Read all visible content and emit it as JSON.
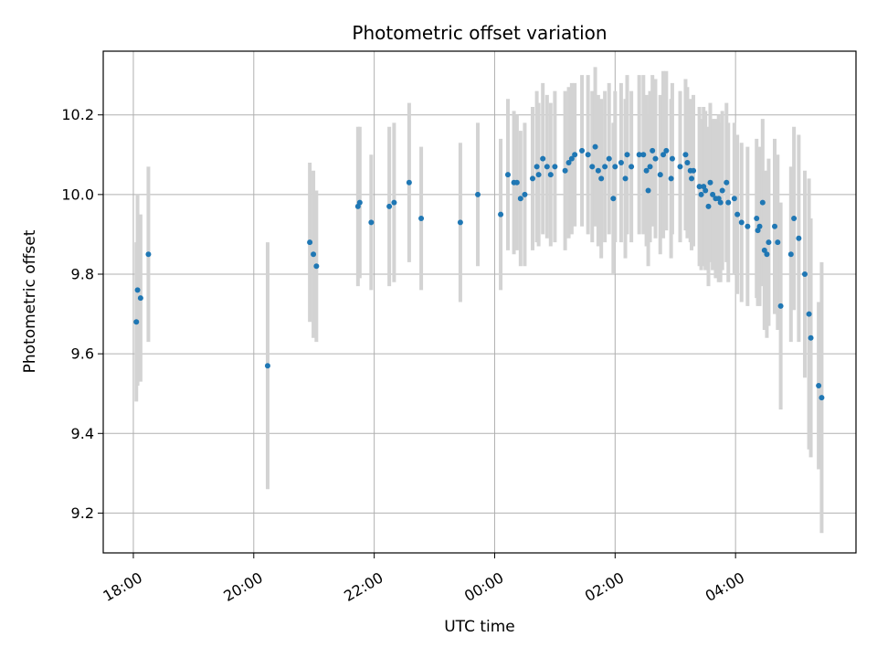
{
  "chart_data": {
    "type": "scatter",
    "title": "Photometric offset variation",
    "xlabel": "UTC time",
    "ylabel": "Photometric offset",
    "x_unit": "hours (UTC, continuing past midnight)",
    "xlim": [
      17.5,
      30.0
    ],
    "ylim": [
      9.1,
      10.36
    ],
    "x_ticks": [
      {
        "value": 18,
        "label": "18:00"
      },
      {
        "value": 20,
        "label": "20:00"
      },
      {
        "value": 22,
        "label": "22:00"
      },
      {
        "value": 24,
        "label": "00:00"
      },
      {
        "value": 26,
        "label": "02:00"
      },
      {
        "value": 28,
        "label": "04:00"
      }
    ],
    "y_ticks": [
      {
        "value": 9.2,
        "label": "9.2"
      },
      {
        "value": 9.4,
        "label": "9.4"
      },
      {
        "value": 9.6,
        "label": "9.6"
      },
      {
        "value": 9.8,
        "label": "9.8"
      },
      {
        "value": 10.0,
        "label": "10.0"
      },
      {
        "value": 10.2,
        "label": "10.2"
      }
    ],
    "grid": true,
    "colors": {
      "marker": "#1f77b4",
      "errorbar": "#d3d3d3",
      "grid": "#b0b0b0"
    },
    "points": [
      [
        18.05,
        9.68,
        0.2
      ],
      [
        18.07,
        9.76,
        0.24
      ],
      [
        18.12,
        9.74,
        0.21
      ],
      [
        18.25,
        9.85,
        0.22
      ],
      [
        20.23,
        9.57,
        0.31
      ],
      [
        20.93,
        9.88,
        0.2
      ],
      [
        20.99,
        9.85,
        0.21
      ],
      [
        21.04,
        9.82,
        0.19
      ],
      [
        21.73,
        9.97,
        0.2
      ],
      [
        21.76,
        9.98,
        0.19
      ],
      [
        21.95,
        9.93,
        0.17
      ],
      [
        22.25,
        9.97,
        0.2
      ],
      [
        22.33,
        9.98,
        0.2
      ],
      [
        22.58,
        10.03,
        0.2
      ],
      [
        22.78,
        9.94,
        0.18
      ],
      [
        23.43,
        9.93,
        0.2
      ],
      [
        23.72,
        10.0,
        0.18
      ],
      [
        24.1,
        9.95,
        0.19
      ],
      [
        24.22,
        10.05,
        0.19
      ],
      [
        24.32,
        10.03,
        0.18
      ],
      [
        24.37,
        10.03,
        0.17
      ],
      [
        24.43,
        9.99,
        0.17
      ],
      [
        24.5,
        10.0,
        0.18
      ],
      [
        24.63,
        10.04,
        0.18
      ],
      [
        24.7,
        10.07,
        0.19
      ],
      [
        24.73,
        10.05,
        0.18
      ],
      [
        24.8,
        10.09,
        0.19
      ],
      [
        24.87,
        10.07,
        0.18
      ],
      [
        24.93,
        10.05,
        0.18
      ],
      [
        25.0,
        10.07,
        0.19
      ],
      [
        25.17,
        10.06,
        0.2
      ],
      [
        25.23,
        10.08,
        0.19
      ],
      [
        25.28,
        10.09,
        0.19
      ],
      [
        25.33,
        10.1,
        0.18
      ],
      [
        25.45,
        10.11,
        0.19
      ],
      [
        25.55,
        10.1,
        0.2
      ],
      [
        25.62,
        10.07,
        0.19
      ],
      [
        25.67,
        10.12,
        0.2
      ],
      [
        25.72,
        10.06,
        0.19
      ],
      [
        25.77,
        10.04,
        0.2
      ],
      [
        25.83,
        10.07,
        0.19
      ],
      [
        25.9,
        10.09,
        0.19
      ],
      [
        25.97,
        9.99,
        0.19
      ],
      [
        26.0,
        10.07,
        0.19
      ],
      [
        26.1,
        10.08,
        0.2
      ],
      [
        26.17,
        10.04,
        0.2
      ],
      [
        26.2,
        10.1,
        0.2
      ],
      [
        26.27,
        10.07,
        0.19
      ],
      [
        26.4,
        10.1,
        0.2
      ],
      [
        26.47,
        10.1,
        0.2
      ],
      [
        26.52,
        10.06,
        0.19
      ],
      [
        26.55,
        10.01,
        0.19
      ],
      [
        26.58,
        10.07,
        0.19
      ],
      [
        26.62,
        10.11,
        0.19
      ],
      [
        26.67,
        10.09,
        0.2
      ],
      [
        26.75,
        10.05,
        0.2
      ],
      [
        26.8,
        10.1,
        0.21
      ],
      [
        26.85,
        10.11,
        0.2
      ],
      [
        26.93,
        10.04,
        0.2
      ],
      [
        26.95,
        10.09,
        0.19
      ],
      [
        27.08,
        10.07,
        0.19
      ],
      [
        27.17,
        10.1,
        0.19
      ],
      [
        27.2,
        10.08,
        0.19
      ],
      [
        27.25,
        10.06,
        0.18
      ],
      [
        27.27,
        10.04,
        0.18
      ],
      [
        27.3,
        10.06,
        0.19
      ],
      [
        27.4,
        10.02,
        0.2
      ],
      [
        27.43,
        10.0,
        0.19
      ],
      [
        27.47,
        10.02,
        0.2
      ],
      [
        27.5,
        10.01,
        0.2
      ],
      [
        27.55,
        9.97,
        0.2
      ],
      [
        27.58,
        10.03,
        0.2
      ],
      [
        27.62,
        10.0,
        0.19
      ],
      [
        27.67,
        9.99,
        0.2
      ],
      [
        27.72,
        9.99,
        0.21
      ],
      [
        27.75,
        9.98,
        0.2
      ],
      [
        27.78,
        10.01,
        0.2
      ],
      [
        27.85,
        10.03,
        0.2
      ],
      [
        27.88,
        9.98,
        0.2
      ],
      [
        27.98,
        9.99,
        0.19
      ],
      [
        28.03,
        9.95,
        0.2
      ],
      [
        28.1,
        9.93,
        0.2
      ],
      [
        28.2,
        9.92,
        0.2
      ],
      [
        28.35,
        9.94,
        0.2
      ],
      [
        28.37,
        9.91,
        0.19
      ],
      [
        28.4,
        9.92,
        0.2
      ],
      [
        28.45,
        9.98,
        0.21
      ],
      [
        28.48,
        9.86,
        0.2
      ],
      [
        28.52,
        9.85,
        0.21
      ],
      [
        28.55,
        9.88,
        0.21
      ],
      [
        28.65,
        9.92,
        0.22
      ],
      [
        28.7,
        9.88,
        0.22
      ],
      [
        28.75,
        9.72,
        0.26
      ],
      [
        28.92,
        9.85,
        0.22
      ],
      [
        28.97,
        9.94,
        0.23
      ],
      [
        29.05,
        9.89,
        0.26
      ],
      [
        29.15,
        9.8,
        0.26
      ],
      [
        29.22,
        9.7,
        0.34
      ],
      [
        29.25,
        9.64,
        0.3
      ],
      [
        29.38,
        9.52,
        0.21
      ],
      [
        29.43,
        9.49,
        0.34
      ]
    ]
  }
}
